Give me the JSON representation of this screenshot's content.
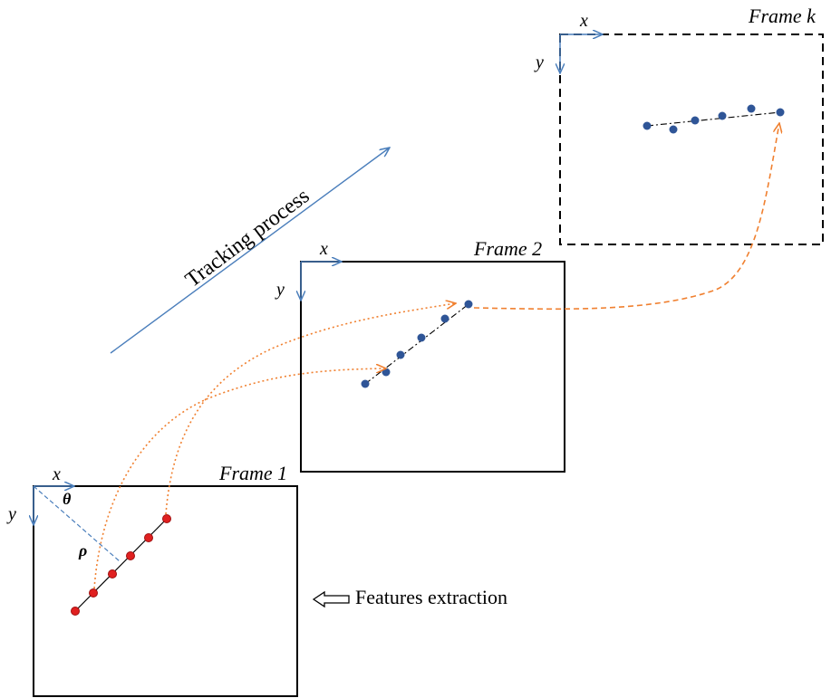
{
  "labels": {
    "tracking": "Tracking process",
    "features": "Features extraction"
  },
  "frames": [
    {
      "title": "Frame 1",
      "x_axis": "x",
      "y_axis": "y",
      "style": "solid"
    },
    {
      "title": "Frame 2",
      "x_axis": "x",
      "y_axis": "y",
      "style": "solid"
    },
    {
      "title": "Frame k",
      "x_axis": "x",
      "y_axis": "y",
      "style": "dashed"
    }
  ],
  "frame1_params": {
    "theta": "θ",
    "rho": "ρ"
  },
  "colors": {
    "axis": "#4a7ebb",
    "frame_border": "#000000",
    "feature_point": "#e02020",
    "tracked_point": "#2f5597",
    "tracking_path": "#f08030",
    "guide_line": "#4a7ebb",
    "line_fit": "#000000"
  }
}
